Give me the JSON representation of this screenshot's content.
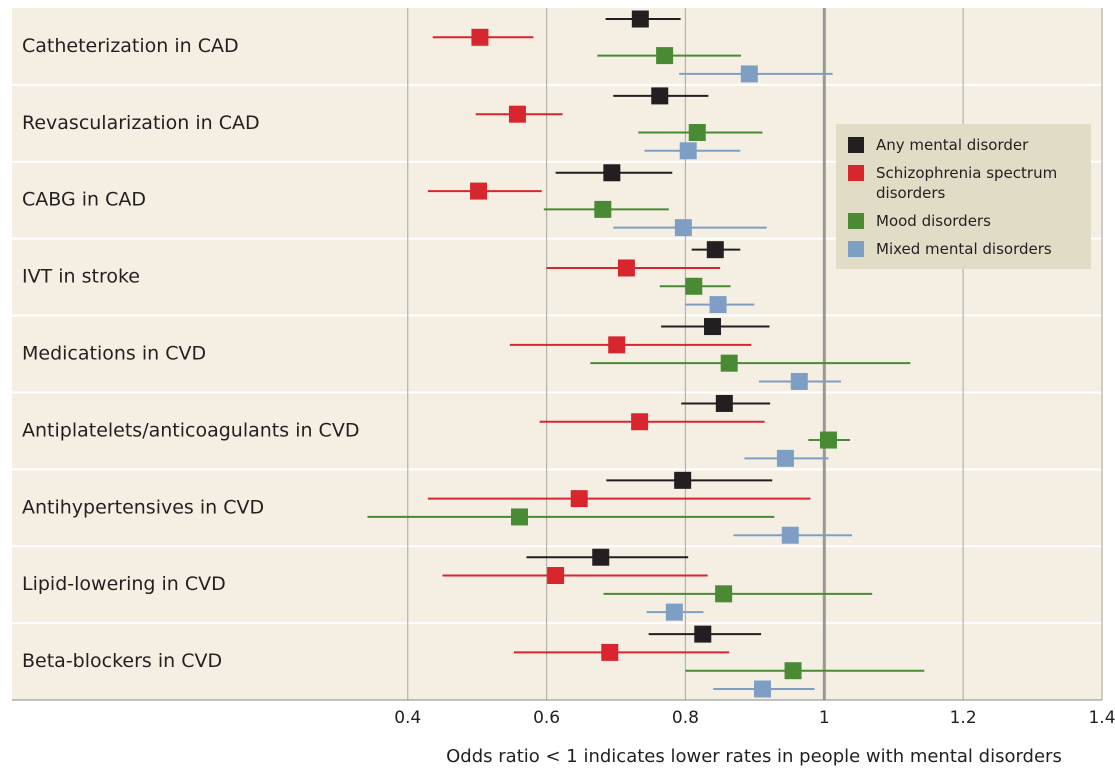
{
  "chart_data": {
    "type": "forest",
    "xlabel": "Odds ratio < 1 indicates lower rates in people with mental disorders",
    "categories": [
      "Catheterization in CAD",
      "Revascularization in CAD",
      "CABG in CAD",
      "IVT in stroke",
      "Medications in CVD",
      "Antiplatelets/anticoagulants in CVD",
      "Antihypertensives in CVD",
      "Lipid-lowering in CVD",
      "Beta-blockers in CVD"
    ],
    "series": [
      {
        "name": "Any mental disorder",
        "color": "#231f20",
        "values": [
          0.735,
          0.763,
          0.694,
          0.843,
          0.839,
          0.856,
          0.796,
          0.678,
          0.825
        ],
        "lower": [
          0.685,
          0.696,
          0.613,
          0.809,
          0.765,
          0.794,
          0.686,
          0.571,
          0.747
        ],
        "upper": [
          0.793,
          0.833,
          0.781,
          0.879,
          0.921,
          0.922,
          0.925,
          0.804,
          0.909
        ]
      },
      {
        "name": "Schizophrenia spectrum disorders",
        "color": "#d7262e",
        "values": [
          0.504,
          0.558,
          0.502,
          0.715,
          0.701,
          0.734,
          0.647,
          0.613,
          0.691
        ],
        "lower": [
          0.436,
          0.498,
          0.429,
          0.6,
          0.547,
          0.59,
          0.429,
          0.45,
          0.553
        ],
        "upper": [
          0.581,
          0.623,
          0.593,
          0.85,
          0.895,
          0.914,
          0.98,
          0.832,
          0.863
        ]
      },
      {
        "name": "Mood disorders",
        "color": "#4a8a35",
        "values": [
          0.77,
          0.817,
          0.681,
          0.812,
          0.863,
          1.006,
          0.561,
          0.855,
          0.955
        ],
        "lower": [
          0.673,
          0.732,
          0.596,
          0.763,
          0.663,
          0.977,
          0.342,
          0.682,
          0.8
        ],
        "upper": [
          0.88,
          0.911,
          0.776,
          0.865,
          1.124,
          1.037,
          0.928,
          1.069,
          1.144
        ]
      },
      {
        "name": "Mixed mental disorders",
        "color": "#7e9fc3",
        "values": [
          0.892,
          0.804,
          0.797,
          0.847,
          0.964,
          0.944,
          0.951,
          0.784,
          0.911
        ],
        "lower": [
          0.791,
          0.741,
          0.696,
          0.8,
          0.906,
          0.885,
          0.869,
          0.744,
          0.84
        ],
        "upper": [
          1.012,
          0.879,
          0.917,
          0.899,
          1.024,
          1.006,
          1.04,
          0.826,
          0.986
        ]
      }
    ],
    "xlim": [
      -0.17,
      1.4
    ],
    "xticks": [
      0.4,
      0.6,
      0.8,
      1,
      1.2,
      1.4
    ],
    "reference_line": 1,
    "grid": true
  }
}
